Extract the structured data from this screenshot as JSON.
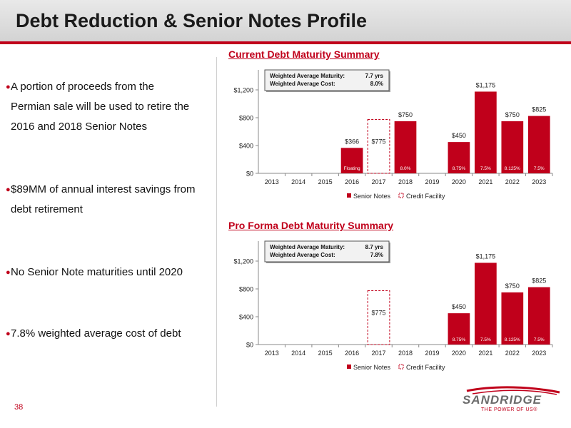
{
  "slide": {
    "title": "Debt Reduction & Senior Notes Profile",
    "page_number": "38",
    "accent_color": "#c0001b"
  },
  "bullets": [
    {
      "lines": [
        "A portion of proceeds from the",
        "Permian sale will be used to retire the",
        "2016 and 2018 Senior Notes"
      ]
    },
    {
      "lines": [
        "$89MM of annual interest savings from",
        "debt retirement"
      ]
    },
    {
      "lines": [
        "No Senior Note maturities until 2020"
      ]
    },
    {
      "lines": [
        "7.8% weighted average cost of debt"
      ]
    }
  ],
  "logo": {
    "name": "SANDRIDGE",
    "tagline": "THE POWER OF US®"
  },
  "chart_data": [
    {
      "type": "bar",
      "title": "Current Debt Maturity Summary",
      "categories": [
        "2013",
        "2014",
        "2015",
        "2016",
        "2017",
        "2018",
        "2019",
        "2020",
        "2021",
        "2022",
        "2023"
      ],
      "ylim": [
        0,
        1200
      ],
      "yticks": [
        "$0",
        "$400",
        "$800",
        "$1,200"
      ],
      "ytick_values": [
        0,
        400,
        800,
        1200
      ],
      "grid": false,
      "legend_position": "bottom",
      "series": [
        {
          "name": "Senior Notes",
          "color": "#c0001b",
          "values": [
            0,
            0,
            0,
            366,
            0,
            750,
            0,
            450,
            1175,
            750,
            825
          ],
          "value_labels": [
            "",
            "",
            "",
            "$366",
            "",
            "$750",
            "",
            "$450",
            "$1,175",
            "$750",
            "$825"
          ],
          "rate_labels": [
            "",
            "",
            "",
            "Floating",
            "",
            "8.0%",
            "",
            "8.75%",
            "7.5%",
            "8.125%",
            "7.5%"
          ]
        },
        {
          "name": "Credit Facility",
          "color": "#c0001b",
          "style": "dashed-outline",
          "values": [
            0,
            0,
            0,
            0,
            775,
            0,
            0,
            0,
            0,
            0,
            0
          ],
          "value_labels": [
            "",
            "",
            "",
            "",
            "$775",
            "",
            "",
            "",
            "",
            "",
            ""
          ]
        }
      ],
      "info_box": [
        {
          "label": "Weighted Average Maturity:",
          "value": "7.7 yrs"
        },
        {
          "label": "Weighted Average Cost:",
          "value": "8.0%"
        }
      ]
    },
    {
      "type": "bar",
      "title": "Pro Forma Debt Maturity Summary",
      "categories": [
        "2013",
        "2014",
        "2015",
        "2016",
        "2017",
        "2018",
        "2019",
        "2020",
        "2021",
        "2022",
        "2023"
      ],
      "ylim": [
        0,
        1200
      ],
      "yticks": [
        "$0",
        "$400",
        "$800",
        "$1,200"
      ],
      "ytick_values": [
        0,
        400,
        800,
        1200
      ],
      "grid": false,
      "legend_position": "bottom",
      "series": [
        {
          "name": "Senior Notes",
          "color": "#c0001b",
          "values": [
            0,
            0,
            0,
            0,
            0,
            0,
            0,
            450,
            1175,
            750,
            825
          ],
          "value_labels": [
            "",
            "",
            "",
            "",
            "",
            "",
            "",
            "$450",
            "$1,175",
            "$750",
            "$825"
          ],
          "rate_labels": [
            "",
            "",
            "",
            "",
            "",
            "",
            "",
            "8.75%",
            "7.5%",
            "8.125%",
            "7.5%"
          ]
        },
        {
          "name": "Credit Facility",
          "color": "#c0001b",
          "style": "dashed-outline",
          "values": [
            0,
            0,
            0,
            0,
            775,
            0,
            0,
            0,
            0,
            0,
            0
          ],
          "value_labels": [
            "",
            "",
            "",
            "",
            "$775",
            "",
            "",
            "",
            "",
            "",
            ""
          ]
        }
      ],
      "info_box": [
        {
          "label": "Weighted Average Maturity:",
          "value": "8.7 yrs"
        },
        {
          "label": "Weighted Average Cost:",
          "value": "7.8%"
        }
      ]
    }
  ]
}
